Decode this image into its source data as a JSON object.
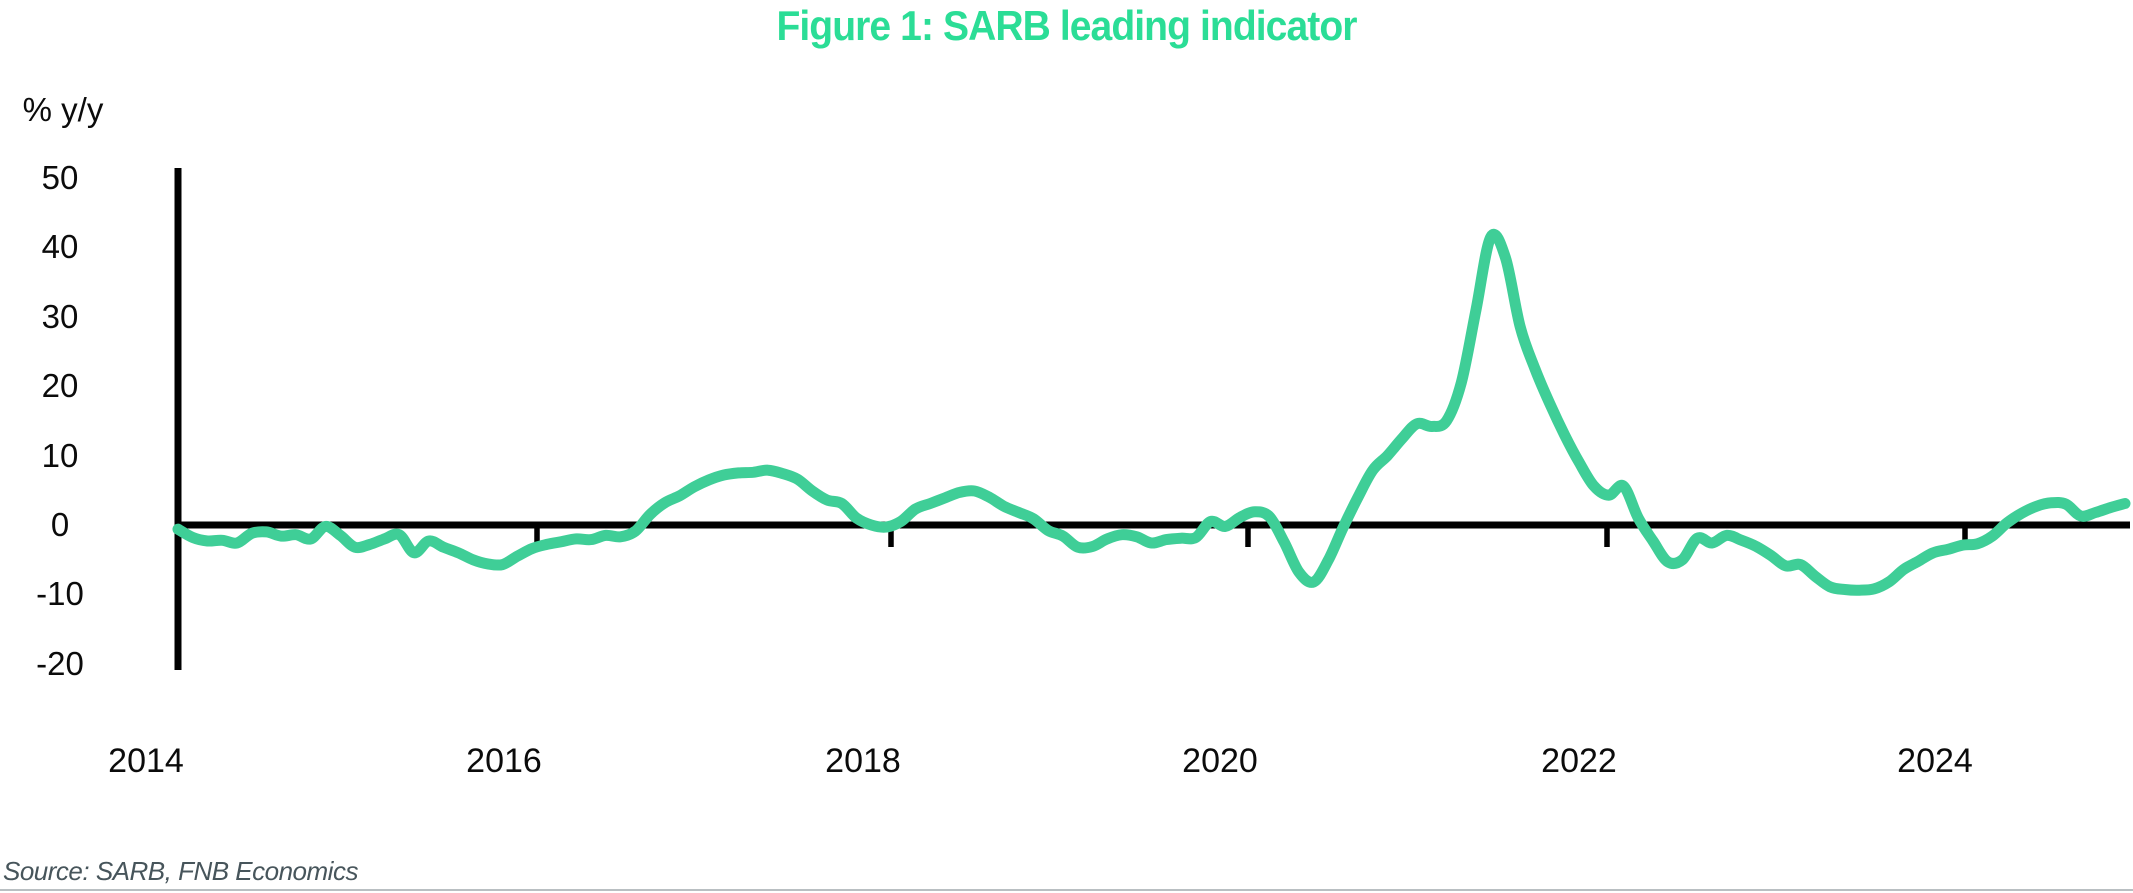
{
  "title": "Figure 1: SARB leading indicator",
  "y_axis_label": "% y/y",
  "source": "Source: SARB, FNB Economics",
  "colors": {
    "title": "#2BDD96",
    "line": "#3FCE97",
    "axis": "#000000",
    "source_text": "#47555B"
  },
  "chart_data": {
    "type": "line",
    "title": "Figure 1: SARB leading indicator",
    "xlabel": "",
    "ylabel": "% y/y",
    "frequency": "monthly",
    "x_start": "2014-01",
    "x_end": "2025-01",
    "x_tick_labels": [
      "2014",
      "2016",
      "2018",
      "2020",
      "2022",
      "2024"
    ],
    "y_ticks": [
      50,
      40,
      30,
      20,
      10,
      0,
      -10,
      -20
    ],
    "ylim": [
      -20,
      50
    ],
    "grid": false,
    "legend": "none",
    "series": [
      {
        "name": "SARB leading indicator (% y/y)",
        "values": [
          -0.6,
          -1.8,
          -2.3,
          -2.2,
          -2.6,
          -1.2,
          -1.0,
          -1.6,
          -1.4,
          -2.0,
          -0.2,
          -1.5,
          -3.2,
          -2.8,
          -2.0,
          -1.4,
          -4.0,
          -2.3,
          -3.2,
          -4.0,
          -5.0,
          -5.6,
          -5.7,
          -4.5,
          -3.4,
          -2.8,
          -2.4,
          -2.0,
          -2.1,
          -1.5,
          -1.7,
          -0.9,
          1.5,
          3.2,
          4.2,
          5.5,
          6.5,
          7.2,
          7.5,
          7.6,
          7.9,
          7.4,
          6.6,
          4.9,
          3.6,
          3.1,
          1.0,
          0.0,
          -0.3,
          0.5,
          2.3,
          3.1,
          3.9,
          4.7,
          4.9,
          4.0,
          2.7,
          1.8,
          0.9,
          -0.8,
          -1.6,
          -3.2,
          -3.1,
          -2.0,
          -1.4,
          -1.7,
          -2.6,
          -2.1,
          -1.9,
          -1.8,
          0.5,
          -0.2,
          1.1,
          1.9,
          1.2,
          -2.5,
          -6.8,
          -8.2,
          -5.0,
          -0.3,
          4.0,
          7.9,
          10.0,
          12.5,
          14.6,
          14.2,
          15.0,
          20.5,
          31.0,
          41.5,
          38.5,
          28.5,
          22.5,
          17.5,
          13.0,
          9.0,
          5.6,
          4.3,
          5.6,
          1.0,
          -2.3,
          -5.3,
          -5.0,
          -1.9,
          -2.6,
          -1.5,
          -2.2,
          -3.1,
          -4.4,
          -5.9,
          -5.7,
          -7.4,
          -8.9,
          -9.3,
          -9.4,
          -9.2,
          -8.2,
          -6.4,
          -5.2,
          -4.0,
          -3.5,
          -2.9,
          -2.7,
          -1.6,
          0.3,
          1.7,
          2.7,
          3.2,
          3.0,
          1.3,
          1.8,
          2.5,
          3.1
        ]
      }
    ]
  }
}
